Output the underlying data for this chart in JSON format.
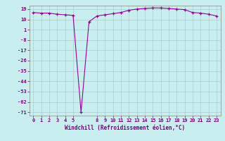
{
  "x": [
    0,
    1,
    2,
    3,
    4,
    5,
    6,
    7,
    8,
    9,
    10,
    11,
    12,
    13,
    14,
    15,
    16,
    17,
    18,
    19,
    20,
    21,
    22,
    23
  ],
  "y": [
    16,
    15.5,
    15.5,
    14.5,
    14,
    13.5,
    -71,
    8,
    13,
    14,
    15,
    16,
    18,
    19,
    19.5,
    20,
    20,
    19.5,
    19,
    18.5,
    16,
    15.5,
    14.5,
    13
  ],
  "line_color": "#990099",
  "marker_color": "#990099",
  "bg_color": "#c8eef0",
  "grid_color": "#aacccc",
  "xlabel": "Windchill (Refroidissement éolien,°C)",
  "yticks": [
    19,
    10,
    1,
    -8,
    -17,
    -26,
    -35,
    -44,
    -53,
    -62,
    -71
  ],
  "xticks": [
    0,
    1,
    2,
    3,
    4,
    5,
    8,
    9,
    10,
    11,
    12,
    13,
    14,
    15,
    16,
    17,
    18,
    19,
    20,
    21,
    22,
    23
  ],
  "xlim": [
    -0.5,
    23.5
  ],
  "ylim": [
    -74,
    22
  ]
}
